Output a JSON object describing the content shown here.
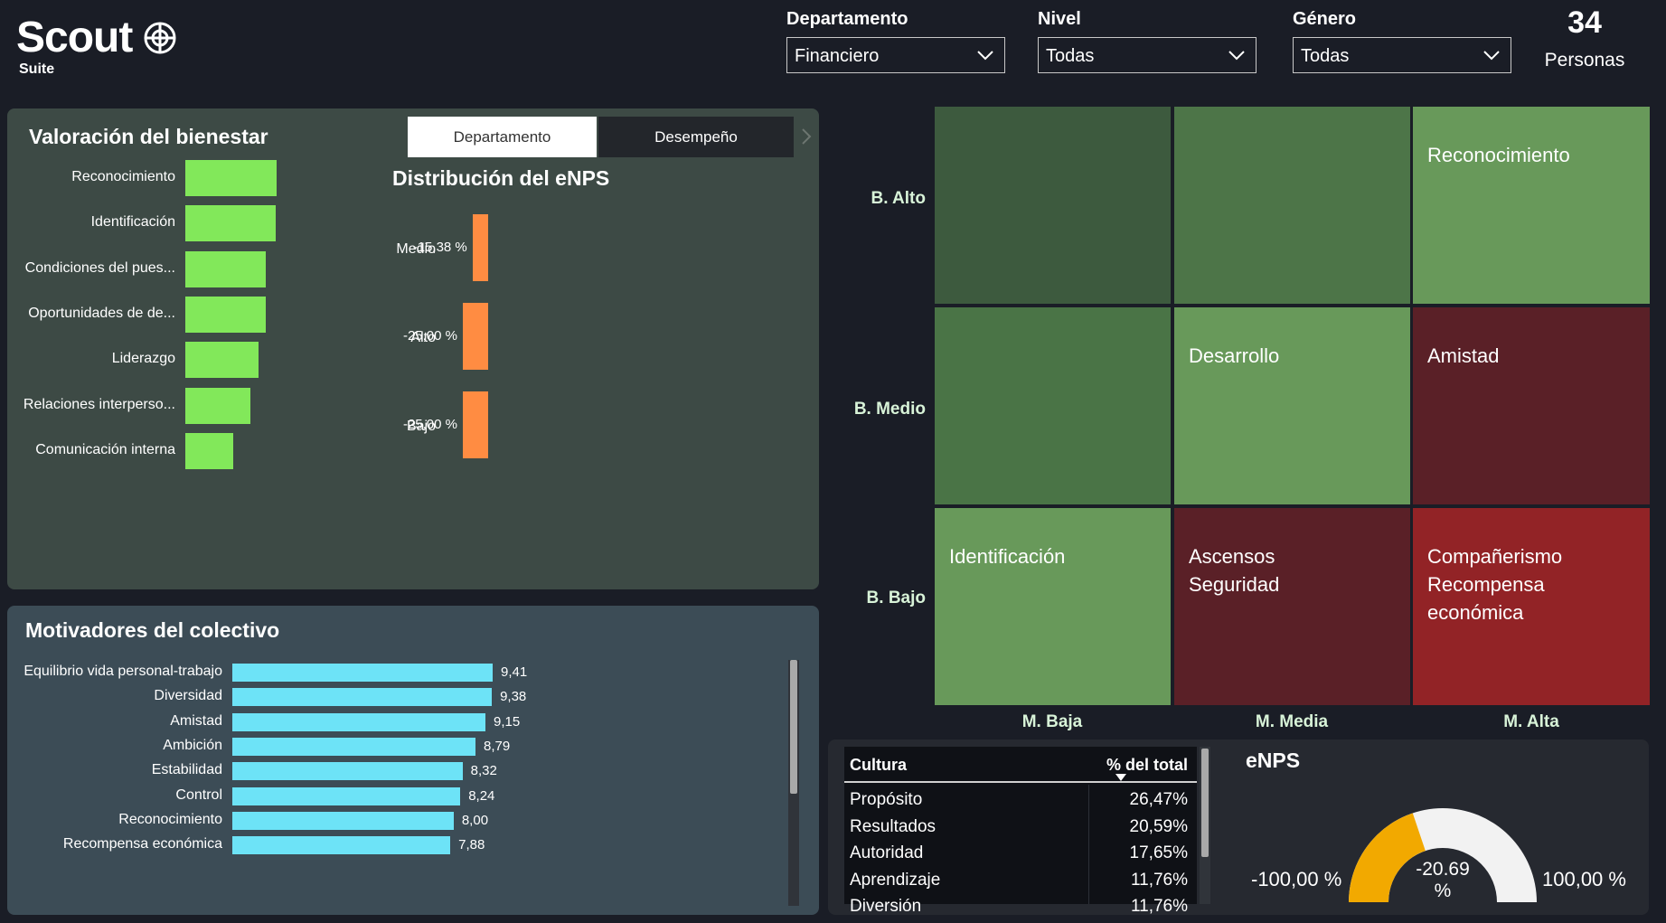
{
  "brand": {
    "name": "Scout",
    "sub": "Suite"
  },
  "filters": [
    {
      "label": "Departamento",
      "value": "Financiero"
    },
    {
      "label": "Nivel",
      "value": "Todas"
    },
    {
      "label": "Género",
      "value": "Todas"
    }
  ],
  "people": {
    "count": "34",
    "label": "Personas"
  },
  "wellbeing": {
    "title": "Valoración del bienestar",
    "tabs": [
      "Departamento",
      "Desempeño"
    ],
    "bar_color": "#82e85a",
    "items": [
      {
        "label": "Reconocimiento",
        "value": 1.0
      },
      {
        "label": "Identificación",
        "value": 0.99
      },
      {
        "label": "Condiciones del pues...",
        "value": 0.88
      },
      {
        "label": "Oportunidades de de...",
        "value": 0.88
      },
      {
        "label": "Liderazgo",
        "value": 0.8
      },
      {
        "label": "Relaciones interperso...",
        "value": 0.71
      },
      {
        "label": "Comunicación interna",
        "value": 0.52
      }
    ]
  },
  "enps_dist": {
    "title": "Distribución del eNPS",
    "bar_color": "#ff8c42",
    "rows": [
      {
        "label": "Medio",
        "value_text": "-15,38 %",
        "value": -15.38
      },
      {
        "label": "Alto",
        "value_text": "-25,00 %",
        "value": -25.0
      },
      {
        "label": "Bajo",
        "value_text": "-25,00 %",
        "value": -25.0
      }
    ]
  },
  "motivators": {
    "title": "Motivadores del colectivo",
    "bar_color": "#6de3f7",
    "max": 9.41,
    "items": [
      {
        "label": "Equilibrio vida personal-trabajo",
        "value": 9.41,
        "value_text": "9,41"
      },
      {
        "label": "Diversidad",
        "value": 9.38,
        "value_text": "9,38"
      },
      {
        "label": "Amistad",
        "value": 9.15,
        "value_text": "9,15"
      },
      {
        "label": "Ambición",
        "value": 8.79,
        "value_text": "8,79"
      },
      {
        "label": "Estabilidad",
        "value": 8.32,
        "value_text": "8,32"
      },
      {
        "label": "Control",
        "value": 8.24,
        "value_text": "8,24"
      },
      {
        "label": "Reconocimiento",
        "value": 8.0,
        "value_text": "8,00"
      },
      {
        "label": "Recompensa económica",
        "value": 7.88,
        "value_text": "7,88"
      }
    ]
  },
  "matrix": {
    "row_labels": [
      "B. Alto",
      "B. Medio",
      "B. Bajo"
    ],
    "col_labels": [
      "M. Baja",
      "M. Media",
      "M. Alta"
    ],
    "cells": [
      [
        {
          "text": "",
          "color": "#3d5a3e"
        },
        {
          "text": "",
          "color": "#4d7548"
        },
        {
          "text": "Reconocimiento",
          "color": "#68995a"
        }
      ],
      [
        {
          "text": "",
          "color": "#4a7446"
        },
        {
          "text": "Desarrollo",
          "color": "#68995a"
        },
        {
          "text": "Amistad",
          "color": "#5a2027"
        }
      ],
      [
        {
          "text": "Identificación",
          "color": "#68995a"
        },
        {
          "text": "Ascensos\nSeguridad",
          "color": "#5a2027"
        },
        {
          "text": "Compañerismo\nRecompensa\neconómica",
          "color": "#922326"
        }
      ]
    ]
  },
  "culture_table": {
    "headers": [
      "Cultura",
      "% del total"
    ],
    "rows": [
      [
        "Propósito",
        "26,47%"
      ],
      [
        "Resultados",
        "20,59%"
      ],
      [
        "Autoridad",
        "17,65%"
      ],
      [
        "Aprendizaje",
        "11,76%"
      ],
      [
        "Diversión",
        "11,76%"
      ]
    ]
  },
  "enps_gauge": {
    "title": "eNPS",
    "min_text": "-100,00 %",
    "max_text": "100,00 %",
    "value_text": "-20.69 %",
    "value": -20.69,
    "min": -100,
    "max": 100,
    "fill_color": "#f2a900",
    "track_color": "#f2f2f2"
  }
}
